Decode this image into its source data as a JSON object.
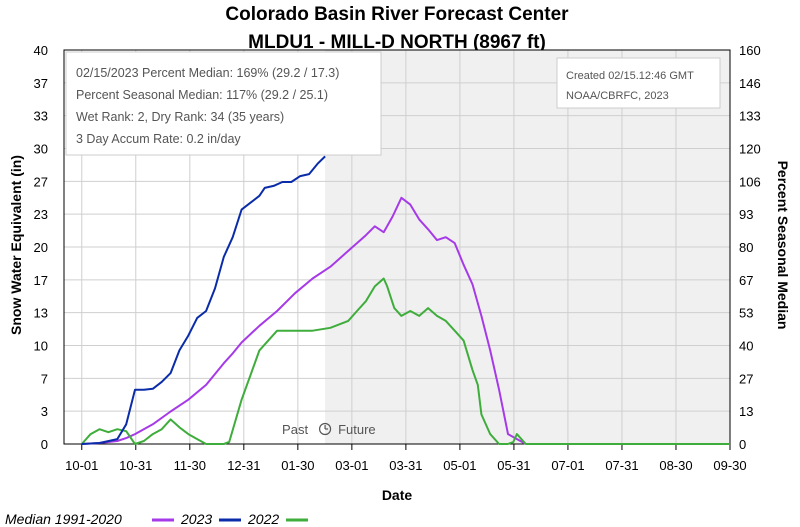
{
  "chart_data": {
    "type": "line",
    "title": "Colorado Basin River Forecast Center",
    "subtitle": "MLDU1 - MILL-D NORTH (8967 ft)",
    "xlabel": "Date",
    "ylabel": "Snow Water Equivalent (in)",
    "ylabel_right": "Percent Seasonal Median",
    "ylim": [
      0,
      40
    ],
    "ylim_right": [
      0,
      160
    ],
    "y_ticks": [
      "0",
      "3",
      "7",
      "10",
      "13",
      "17",
      "20",
      "23",
      "27",
      "30",
      "33",
      "37",
      "40"
    ],
    "y_ticks_right": [
      "0",
      "13",
      "27",
      "40",
      "53",
      "67",
      "80",
      "93",
      "106",
      "120",
      "133",
      "146",
      "160"
    ],
    "x_ticks": [
      "10-01",
      "10-31",
      "11-30",
      "12-31",
      "01-30",
      "03-01",
      "03-31",
      "05-01",
      "05-31",
      "07-01",
      "07-31",
      "08-30",
      "09-30"
    ],
    "grid": true,
    "x_range_days": [
      -10,
      365
    ],
    "future_start_day": 137,
    "info_box": [
      "02/15/2023 Percent Median: 169% (29.2 / 17.3)",
      "Percent Seasonal Median: 117% (29.2 / 25.1)",
      "Wet Rank: 2, Dry Rank: 34  (35 years)",
      "3 Day Accum Rate: 0.2 in/day"
    ],
    "credit": [
      "Created 02/15.12:46 GMT",
      "NOAA/CBRFC, 2023"
    ],
    "past_label": "Past",
    "future_label": "Future",
    "legend_position": "bottom-left",
    "series": [
      {
        "name": "Median 1991-2020",
        "color": "#a63ae8",
        "x": [
          0,
          10,
          20,
          25,
          30,
          40,
          50,
          60,
          70,
          80,
          85,
          90,
          100,
          110,
          120,
          130,
          140,
          150,
          160,
          165,
          170,
          175,
          180,
          185,
          190,
          195,
          200,
          205,
          210,
          215,
          220,
          225,
          230,
          235,
          240,
          250
        ],
        "y": [
          0,
          0.1,
          0.3,
          0.6,
          1.0,
          2.0,
          3.3,
          4.5,
          6.0,
          8.2,
          9.2,
          10.3,
          12.0,
          13.5,
          15.3,
          16.8,
          18.0,
          19.6,
          21.2,
          22.1,
          21.5,
          23.1,
          25.0,
          24.3,
          22.8,
          21.8,
          20.7,
          21.0,
          20.4,
          18.2,
          16.2,
          13.0,
          9.5,
          5.5,
          1.0,
          0
        ]
      },
      {
        "name": "2023",
        "color": "#0a2ca8",
        "x": [
          0,
          10,
          20,
          25,
          30,
          35,
          40,
          45,
          50,
          55,
          60,
          65,
          70,
          75,
          80,
          85,
          90,
          95,
          100,
          103,
          108,
          113,
          118,
          123,
          128,
          133,
          137
        ],
        "y": [
          0,
          0.1,
          0.5,
          2.0,
          5.5,
          5.5,
          5.6,
          6.3,
          7.2,
          9.5,
          11.0,
          12.8,
          13.5,
          15.8,
          19.0,
          21.0,
          23.8,
          24.5,
          25.2,
          26.0,
          26.2,
          26.6,
          26.6,
          27.2,
          27.4,
          28.5,
          29.2
        ]
      },
      {
        "name": "2022",
        "color": "#3fad3c",
        "x": [
          0,
          5,
          10,
          15,
          20,
          25,
          30,
          35,
          40,
          45,
          50,
          55,
          60,
          65,
          70,
          80,
          83,
          90,
          95,
          100,
          110,
          120,
          130,
          140,
          150,
          155,
          160,
          165,
          170,
          172,
          176,
          180,
          185,
          190,
          195,
          200,
          205,
          210,
          215,
          220,
          223,
          225,
          230,
          235,
          240,
          243,
          245,
          250
        ],
        "y": [
          0,
          1.0,
          1.5,
          1.2,
          1.5,
          1.3,
          0,
          0.3,
          1.0,
          1.5,
          2.5,
          1.7,
          1.0,
          0.5,
          0,
          0,
          0.2,
          4.5,
          7.0,
          9.5,
          11.5,
          11.5,
          11.5,
          11.8,
          12.5,
          13.5,
          14.5,
          16.0,
          16.8,
          16.0,
          13.8,
          13.0,
          13.5,
          13.0,
          13.8,
          13.0,
          12.5,
          11.5,
          10.5,
          7.5,
          6.0,
          3.0,
          1.0,
          0,
          0,
          0.2,
          1.0,
          0
        ]
      }
    ]
  }
}
